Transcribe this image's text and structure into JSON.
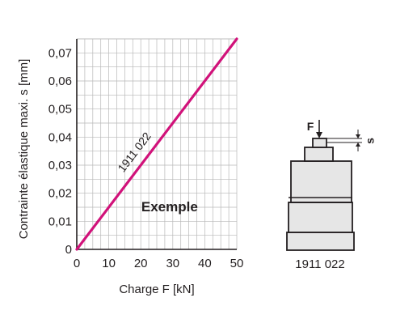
{
  "chart_data": {
    "type": "line",
    "xlabel": "Charge F [kN]",
    "ylabel": "Contrainte élastique maxi. s [mm]",
    "xlim": [
      0,
      50
    ],
    "ylim": [
      0,
      0.075
    ],
    "x_ticks": [
      "0",
      "10",
      "20",
      "30",
      "40",
      "50"
    ],
    "y_ticks": [
      "0",
      "0,01",
      "0,02",
      "0,03",
      "0,04",
      "0,05",
      "0,06",
      "0,07"
    ],
    "grid": true,
    "series": [
      {
        "name": "1911 022",
        "x": [
          0,
          50
        ],
        "y": [
          0,
          0.075
        ],
        "color": "#d1127a"
      }
    ],
    "annotations": [
      "Exemple"
    ]
  },
  "illustration": {
    "force_symbol": "F",
    "travel_symbol": "s",
    "part_number": "1911 022"
  },
  "colors": {
    "series": "#d1127a",
    "grid": "#b8b8b8",
    "axis": "#231f20",
    "part_fill": "#e6e6e6",
    "part_stroke": "#231f20"
  }
}
